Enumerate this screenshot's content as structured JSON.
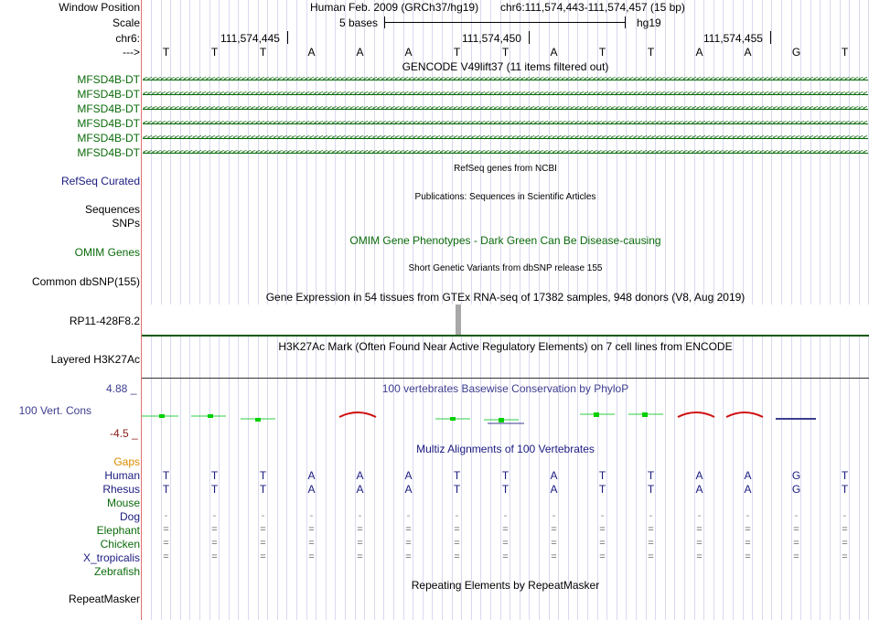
{
  "header": {
    "window_position_label": "Window Position",
    "assembly": "Human Feb. 2009 (GRCh37/hg19)",
    "position": "chr6:111,574,443-111,574,457 (15 bp)",
    "scale_label": "Scale",
    "scale_text": "5 bases",
    "scale_db": "hg19",
    "chrom_label": "chr6:",
    "ticks": [
      "111,574,445",
      "111,574,450",
      "111,574,455"
    ],
    "strand_label": "--->",
    "bases": [
      "T",
      "T",
      "T",
      "A",
      "A",
      "A",
      "T",
      "T",
      "A",
      "T",
      "T",
      "A",
      "A",
      "G",
      "T"
    ]
  },
  "gencode": {
    "title": "GENCODE V49lift37 (11 items filtered out)",
    "items": [
      "MFSD4B-DT",
      "MFSD4B-DT",
      "MFSD4B-DT",
      "MFSD4B-DT",
      "MFSD4B-DT",
      "MFSD4B-DT"
    ],
    "arrows": "<<<<<<<<<<<<<<<<<<<<<<<<<<<<<<<<<<<<<<<<<<<<<<<<<<<<<<<<<<<<<<<<<<<<<<<<<<<<<<<<<<<<<<<<<<<<<<<<<<<<<<<<<<<<<<<<<<<<<<<<<<<<<<<<<<<<<<<<<<<<<<<<<<<<<<<<<<<<<<<<<"
  },
  "tracks": {
    "refseq": {
      "label": "RefSeq Curated",
      "title": "RefSeq genes from NCBI"
    },
    "publications": {
      "label": "Sequences",
      "title": "Publications: Sequences in Scientific Articles"
    },
    "snps": {
      "label": "SNPs"
    },
    "omim": {
      "label": "OMIM Genes",
      "title": "OMIM Gene Phenotypes - Dark Green Can Be Disease-causing"
    },
    "dbsnp": {
      "label": "Common dbSNP(155)",
      "title": "Short Genetic Variants from dbSNP release 155"
    },
    "gtex": {
      "label": "RP11-428F8.2",
      "title": "Gene Expression in 54 tissues from GTEx RNA-seq of 17382 samples, 948 donors (V8, Aug 2019)"
    },
    "h3k27ac": {
      "label": "Layered H3K27Ac",
      "title": "H3K27Ac Mark (Often Found Near Active Regulatory Elements) on 7 cell lines from ENCODE"
    },
    "phylop": {
      "label": "100 Vert. Cons",
      "title": "100 vertebrates Basewise Conservation by PhyloP",
      "max": "4.88 _",
      "min": "-4.5 _"
    },
    "multiz": {
      "title": "Multiz Alignments of 100 Vertebrates"
    },
    "repeatmasker": {
      "label": "RepeatMasker",
      "title": "Repeating Elements by RepeatMasker"
    }
  },
  "alignment": {
    "gaps_label": "Gaps",
    "species": [
      {
        "name": "Human",
        "row": [
          "T",
          "T",
          "T",
          "A",
          "A",
          "A",
          "T",
          "T",
          "A",
          "T",
          "T",
          "A",
          "A",
          "G",
          "T"
        ]
      },
      {
        "name": "Rhesus",
        "row": [
          "T",
          "T",
          "T",
          "A",
          "A",
          "A",
          "T",
          "T",
          "A",
          "T",
          "T",
          "A",
          "A",
          "G",
          "T"
        ]
      },
      {
        "name": "Mouse",
        "row": []
      },
      {
        "name": "Dog",
        "row": [
          "-",
          "-",
          "-",
          "-",
          "-",
          "-",
          "-",
          "-",
          "-",
          "-",
          "-",
          "-",
          "-",
          "-",
          "-"
        ]
      },
      {
        "name": "Elephant",
        "row": [
          "=",
          "=",
          "=",
          "=",
          "=",
          "=",
          "=",
          "=",
          "=",
          "=",
          "=",
          "=",
          "=",
          "=",
          "="
        ]
      },
      {
        "name": "Chicken",
        "row": [
          "=",
          "=",
          "=",
          "=",
          "=",
          "=",
          "=",
          "=",
          "=",
          "=",
          "=",
          "=",
          "=",
          "=",
          "="
        ]
      },
      {
        "name": "X_tropicalis",
        "row": [
          "=",
          "=",
          "=",
          "=",
          "=",
          "=",
          "=",
          "=",
          "=",
          "=",
          "=",
          "=",
          "=",
          "=",
          "="
        ]
      },
      {
        "name": "Zebrafish",
        "row": []
      }
    ]
  },
  "colors": {
    "green": "#0b6b0b",
    "blue": "#1a1a80",
    "purple": "#3d3d8f",
    "orange": "#d98c00",
    "darkred": "#8b1a1a"
  }
}
